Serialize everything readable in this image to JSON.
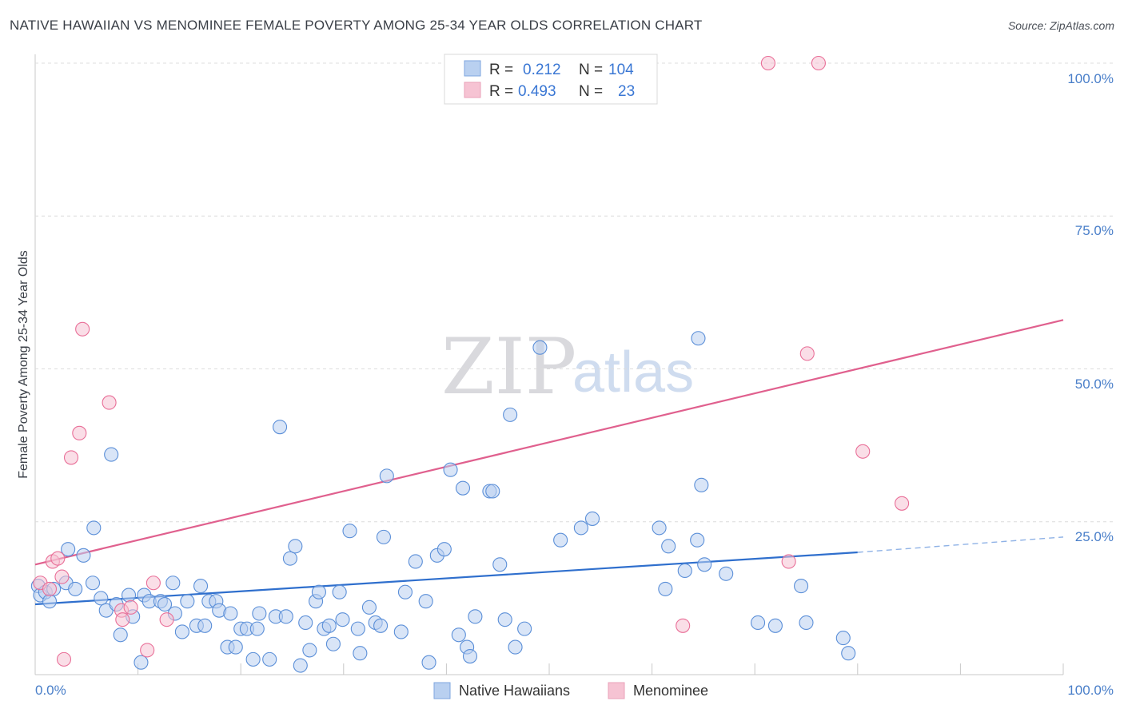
{
  "title": "NATIVE HAWAIIAN VS MENOMINEE FEMALE POVERTY AMONG 25-34 YEAR OLDS CORRELATION CHART",
  "source": "Source: ZipAtlas.com",
  "watermark": {
    "zip": "ZIP",
    "atlas": "atlas"
  },
  "colors": {
    "blue": "#5b8fd8",
    "blue_fill": "#b9d0f0",
    "pink": "#e96f98",
    "pink_fill": "#f6c3d3",
    "blue_line": "#2f6fcd",
    "pink_line": "#e0608e"
  },
  "legend": {
    "rows": [
      {
        "r_label": "R =",
        "r_value": "0.212",
        "n_label": "N =",
        "n_value": "104"
      },
      {
        "r_label": "R =",
        "r_value": "0.493",
        "n_label": "N =",
        "n_value": "23"
      }
    ]
  },
  "bottom_legend": [
    "Native Hawaiians",
    "Menominee"
  ],
  "chart_data": {
    "type": "scatter",
    "title": "NATIVE HAWAIIAN VS MENOMINEE FEMALE POVERTY AMONG 25-34 YEAR OLDS CORRELATION CHART",
    "xlabel": "",
    "ylabel": "Female Poverty Among 25-34 Year Olds",
    "xlim": [
      0,
      100
    ],
    "ylim": [
      0,
      100
    ],
    "x_tick_labels": [
      "0.0%",
      "100.0%"
    ],
    "y_tick_labels": [
      "25.0%",
      "50.0%",
      "75.0%",
      "100.0%"
    ],
    "y_ticks": [
      25,
      50,
      75,
      100
    ],
    "series": [
      {
        "name": "Native Hawaiians",
        "points": [
          [
            0.3,
            14.5
          ],
          [
            0.5,
            13
          ],
          [
            1,
            13.5
          ],
          [
            1.4,
            12
          ],
          [
            1.8,
            14
          ],
          [
            3,
            15
          ],
          [
            3.2,
            20.5
          ],
          [
            3.9,
            14
          ],
          [
            4.7,
            19.5
          ],
          [
            5.6,
            15
          ],
          [
            5.7,
            24
          ],
          [
            6.4,
            12.5
          ],
          [
            6.9,
            10.5
          ],
          [
            7.4,
            36
          ],
          [
            7.9,
            11.5
          ],
          [
            8.3,
            6.5
          ],
          [
            9.1,
            13
          ],
          [
            9.5,
            9.5
          ],
          [
            10.3,
            2
          ],
          [
            10.6,
            13
          ],
          [
            11.1,
            12
          ],
          [
            12.2,
            12
          ],
          [
            12.6,
            11.5
          ],
          [
            13.4,
            15
          ],
          [
            13.6,
            10
          ],
          [
            14.3,
            7
          ],
          [
            14.8,
            12
          ],
          [
            15.7,
            8
          ],
          [
            16.1,
            14.5
          ],
          [
            16.5,
            8
          ],
          [
            16.9,
            12
          ],
          [
            17.6,
            12
          ],
          [
            17.9,
            10.5
          ],
          [
            18.7,
            4.5
          ],
          [
            19,
            10
          ],
          [
            19.5,
            4.5
          ],
          [
            20,
            7.5
          ],
          [
            20.6,
            7.5
          ],
          [
            21.2,
            2.5
          ],
          [
            21.6,
            7.5
          ],
          [
            21.8,
            10
          ],
          [
            22.8,
            2.5
          ],
          [
            23.4,
            9.5
          ],
          [
            23.8,
            40.5
          ],
          [
            24.4,
            9.5
          ],
          [
            24.8,
            19
          ],
          [
            25.3,
            21
          ],
          [
            25.8,
            1.5
          ],
          [
            26.3,
            8.5
          ],
          [
            26.7,
            4
          ],
          [
            27.3,
            12
          ],
          [
            27.6,
            13.5
          ],
          [
            28.1,
            7.5
          ],
          [
            28.6,
            8
          ],
          [
            29,
            5
          ],
          [
            29.6,
            13.5
          ],
          [
            29.9,
            9
          ],
          [
            30.6,
            23.5
          ],
          [
            31.4,
            7.5
          ],
          [
            31.6,
            3.5
          ],
          [
            32.5,
            11
          ],
          [
            33.1,
            8.5
          ],
          [
            33.6,
            8
          ],
          [
            33.9,
            22.5
          ],
          [
            34.2,
            32.5
          ],
          [
            35.6,
            7
          ],
          [
            36,
            13.5
          ],
          [
            37,
            18.5
          ],
          [
            38,
            12
          ],
          [
            38.3,
            2
          ],
          [
            39.1,
            19.5
          ],
          [
            39.8,
            20.5
          ],
          [
            40.4,
            33.5
          ],
          [
            41.2,
            6.5
          ],
          [
            42,
            4.5
          ],
          [
            42.3,
            3
          ],
          [
            41.6,
            30.5
          ],
          [
            42.8,
            9.5
          ],
          [
            44.2,
            30
          ],
          [
            44.5,
            30
          ],
          [
            45.2,
            18
          ],
          [
            45.7,
            9
          ],
          [
            46.2,
            42.5
          ],
          [
            46.7,
            4.5
          ],
          [
            47.6,
            7.5
          ],
          [
            49.1,
            53.5
          ],
          [
            51.1,
            22
          ],
          [
            53.1,
            24
          ],
          [
            54.2,
            25.5
          ],
          [
            60.7,
            24
          ],
          [
            61.3,
            14
          ],
          [
            61.6,
            21
          ],
          [
            63.2,
            17
          ],
          [
            64.4,
            22
          ],
          [
            64.5,
            55
          ],
          [
            64.8,
            31
          ],
          [
            65.1,
            18
          ],
          [
            67.2,
            16.5
          ],
          [
            70.3,
            8.5
          ],
          [
            74.5,
            14.5
          ],
          [
            75,
            8.5
          ],
          [
            78.6,
            6
          ],
          [
            79.1,
            3.5
          ],
          [
            72,
            8
          ]
        ]
      },
      {
        "name": "Menominee",
        "points": [
          [
            0.5,
            15
          ],
          [
            1.4,
            14
          ],
          [
            1.7,
            18.5
          ],
          [
            2.2,
            19
          ],
          [
            2.6,
            16
          ],
          [
            2.8,
            2.5
          ],
          [
            3.5,
            35.5
          ],
          [
            4.6,
            56.5
          ],
          [
            4.3,
            39.5
          ],
          [
            7.2,
            44.5
          ],
          [
            8.4,
            10.5
          ],
          [
            8.5,
            9
          ],
          [
            9.3,
            11
          ],
          [
            10.9,
            4
          ],
          [
            12.8,
            9
          ],
          [
            71.3,
            100
          ],
          [
            76.2,
            100
          ],
          [
            75.1,
            52.5
          ],
          [
            80.5,
            36.5
          ],
          [
            84.3,
            28
          ],
          [
            73.3,
            18.5
          ],
          [
            63,
            8
          ],
          [
            11.5,
            15
          ]
        ]
      }
    ],
    "trendlines": [
      {
        "series": "Native Hawaiians",
        "from": [
          0,
          11.5
        ],
        "to": [
          80,
          20
        ],
        "dashed_to": [
          100,
          22.5
        ]
      },
      {
        "series": "Menominee",
        "from": [
          0,
          18
        ],
        "to": [
          100,
          58
        ]
      }
    ]
  }
}
